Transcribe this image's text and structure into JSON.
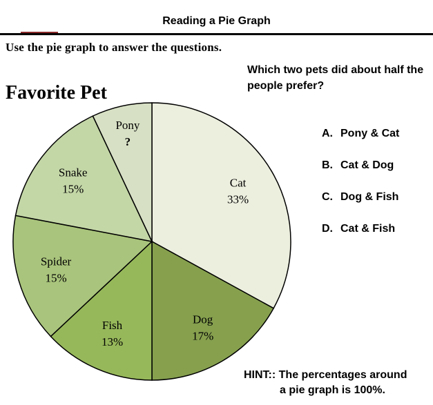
{
  "header": {
    "title": "Reading a Pie Graph"
  },
  "instructions": "Use the pie graph to answer the questions.",
  "question": {
    "text": "Which two pets did about half the people prefer?"
  },
  "choices": [
    {
      "letter": "A.",
      "label": "Pony & Cat"
    },
    {
      "letter": "B.",
      "label": "Cat & Dog"
    },
    {
      "letter": "C.",
      "label": "Dog & Fish"
    },
    {
      "letter": "D.",
      "label": "Cat & Fish"
    }
  ],
  "hint": {
    "line1": "HINT:: The percentages around",
    "line2": "a pie graph is 100%."
  },
  "chart_data": {
    "type": "pie",
    "title": "Favorite Pet",
    "slices": [
      {
        "name": "Cat",
        "label": "33%",
        "value": 33,
        "color": "#ecefde"
      },
      {
        "name": "Dog",
        "label": "17%",
        "value": 17,
        "color": "#86a04e"
      },
      {
        "name": "Fish",
        "label": "13%",
        "value": 13,
        "color": "#97b85a"
      },
      {
        "name": "Spider",
        "label": "15%",
        "value": 15,
        "color": "#a9c47c"
      },
      {
        "name": "Snake",
        "label": "15%",
        "value": 15,
        "color": "#c3d6a6"
      },
      {
        "name": "Pony",
        "label": "?",
        "value": 7,
        "color": "#d7e0c4"
      }
    ],
    "start_angle_deg": 0,
    "direction": "clockwise"
  }
}
